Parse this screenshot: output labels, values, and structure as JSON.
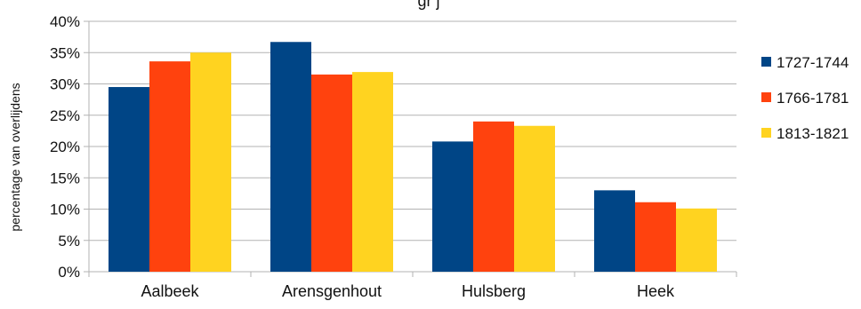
{
  "chart_data": {
    "type": "bar",
    "title": "",
    "title_partial": "gr j",
    "xlabel": "",
    "ylabel": "percentage van overlijdens",
    "ylim": [
      0,
      40
    ],
    "y_ticks": [
      "0%",
      "5%",
      "10%",
      "15%",
      "20%",
      "25%",
      "30%",
      "35%",
      "40%"
    ],
    "grid": true,
    "legend_position": "right",
    "categories": [
      "Aalbeek",
      "Arensgenhout",
      "Hulsberg",
      "Heek"
    ],
    "series": [
      {
        "name": "1727-1744",
        "color": "#004586",
        "values": [
          29.5,
          36.7,
          20.8,
          13.0
        ]
      },
      {
        "name": "1766-1781",
        "color": "#ff420e",
        "values": [
          33.6,
          31.5,
          24.0,
          11.1
        ]
      },
      {
        "name": "1813-1821",
        "color": "#ffd320",
        "values": [
          35.0,
          31.9,
          23.3,
          10.1
        ]
      }
    ]
  }
}
